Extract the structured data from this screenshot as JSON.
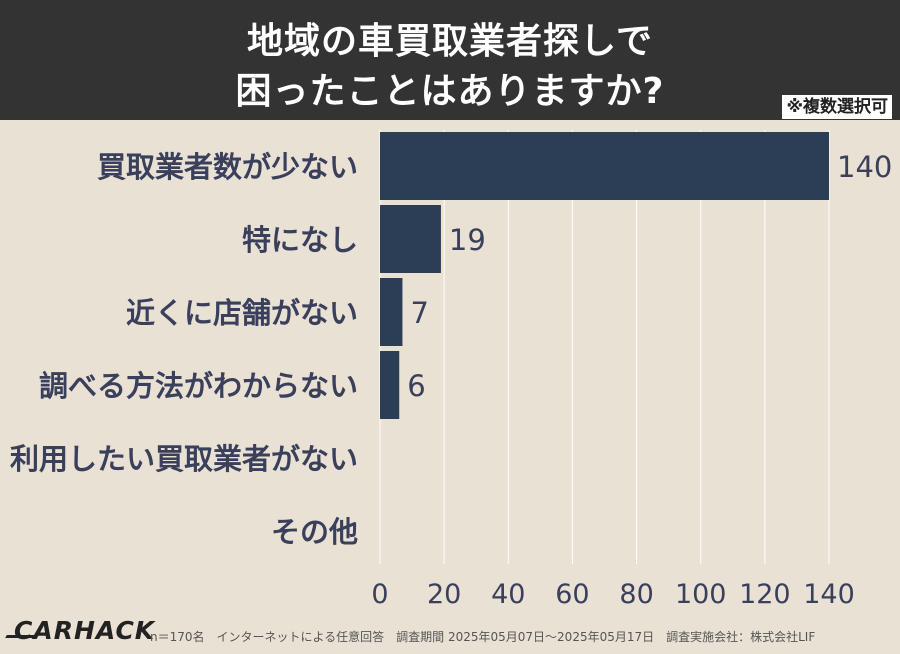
{
  "header": {
    "title_line1": "地域の車買取業者探しで",
    "title_line2": "困ったことはありますか?",
    "note": "※複数選択可"
  },
  "chart_data": {
    "type": "bar",
    "orientation": "horizontal",
    "categories": [
      "買取業者数が少ない",
      "特になし",
      "近くに店舗がない",
      "調べる方法がわからない",
      "利用したい買取業者がない",
      "その他"
    ],
    "values": [
      140,
      19,
      7,
      6,
      0,
      0
    ],
    "xlim": [
      0,
      140
    ],
    "xticks": [
      0,
      20,
      40,
      60,
      80,
      100,
      120,
      140
    ],
    "grid": true,
    "bar_color": "#2b3e55",
    "grid_color": "#ffffff",
    "label_color": "#3a3f5c"
  },
  "footer": {
    "logo": "CARHACK",
    "credits": "n＝170名　インターネットによる任意回答　調査期間 2025年05月07日〜2025年05月17日　調査実施会社：株式会社LIF"
  }
}
